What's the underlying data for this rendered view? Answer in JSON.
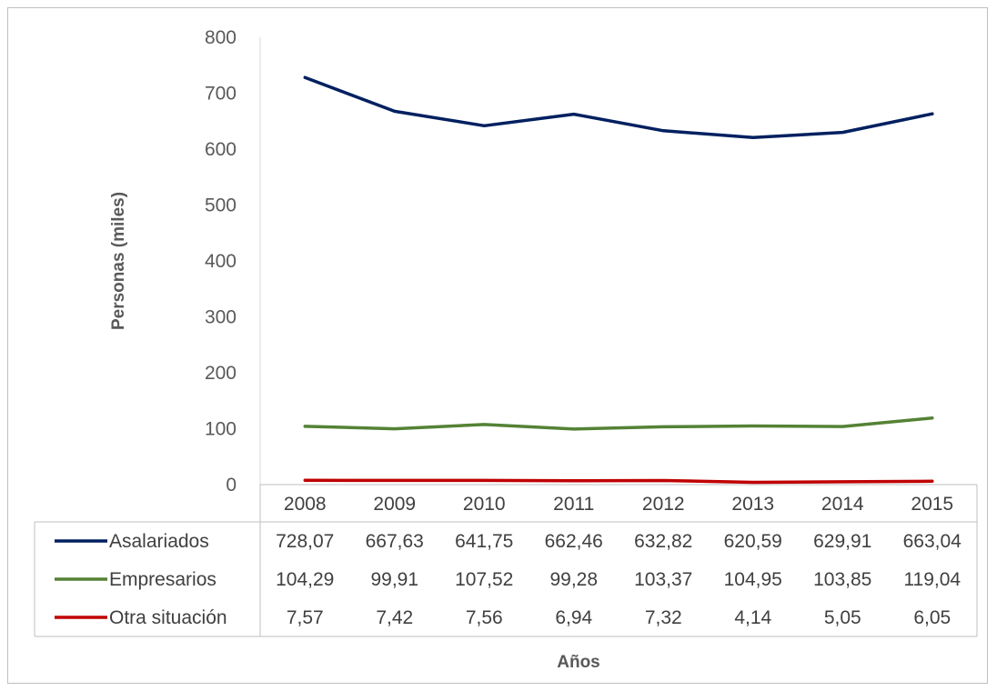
{
  "chart_data": {
    "type": "line",
    "title": "",
    "xlabel": "Años",
    "ylabel": "Personas (miles)",
    "ylim": [
      0,
      800
    ],
    "yticks": [
      0,
      100,
      200,
      300,
      400,
      500,
      600,
      700,
      800
    ],
    "grid": false,
    "legend": "data-table-left",
    "categories": [
      "2008",
      "2009",
      "2010",
      "2011",
      "2012",
      "2013",
      "2014",
      "2015"
    ],
    "series": [
      {
        "name": "Asalariados",
        "color": "#002060",
        "values": [
          728.07,
          667.63,
          641.75,
          662.46,
          632.82,
          620.59,
          629.91,
          663.04
        ],
        "labels": [
          "728,07",
          "667,63",
          "641,75",
          "662,46",
          "632,82",
          "620,59",
          "629,91",
          "663,04"
        ]
      },
      {
        "name": "Empresarios",
        "color": "#548235",
        "values": [
          104.29,
          99.91,
          107.52,
          99.28,
          103.37,
          104.95,
          103.85,
          119.04
        ],
        "labels": [
          "104,29",
          "99,91",
          "107,52",
          "99,28",
          "103,37",
          "104,95",
          "103,85",
          "119,04"
        ]
      },
      {
        "name": "Otra situación",
        "color": "#c00000",
        "values": [
          7.57,
          7.42,
          7.56,
          6.94,
          7.32,
          4.14,
          5.05,
          6.05
        ],
        "labels": [
          "7,57",
          "7,42",
          "7,56",
          "6,94",
          "7,32",
          "4,14",
          "5,05",
          "6,05"
        ]
      }
    ]
  }
}
